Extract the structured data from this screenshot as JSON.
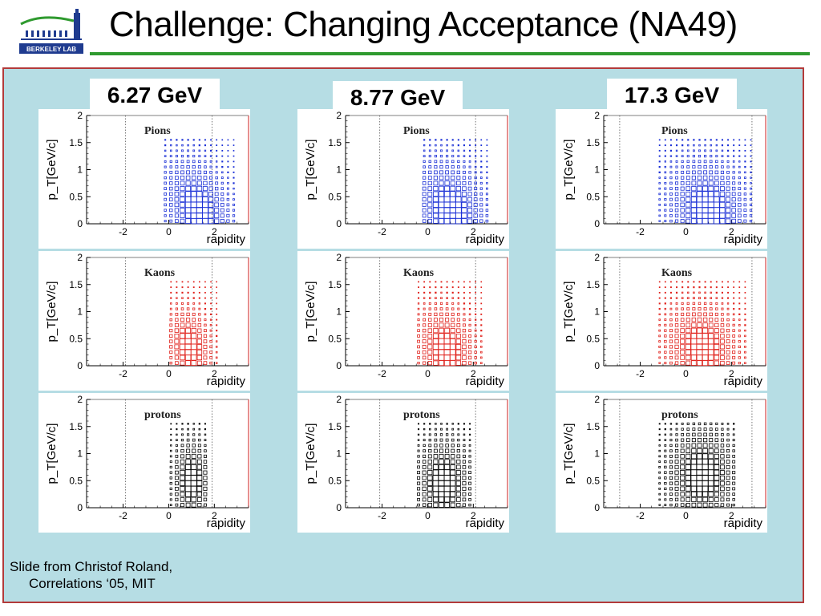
{
  "slide": {
    "title": "Challenge: Changing Acceptance (NA49)",
    "logo_text": "BERKELEY LAB",
    "credit_line1": "Slide from Christof Roland,",
    "credit_line2": "Correlations ‘05, MIT",
    "colors": {
      "title_rule": "#2f9a2f",
      "content_background": "#b6dde4",
      "content_border": "#b33a3a",
      "pions": "#1a2fd6",
      "kaons": "#e0201a",
      "protons": "#000000"
    }
  },
  "energies": [
    "6.27 GeV",
    "8.77 GeV",
    "17.3 GeV"
  ],
  "chart_data": [
    {
      "type": "heatmap",
      "energy": "6.27 GeV",
      "particle": "Pions",
      "xlabel": "rapidity",
      "ylabel": "p_T[GeV/c]",
      "x_ticks": [
        "-2",
        "0",
        "2"
      ],
      "y_ticks": [
        "0",
        "0.5",
        "1",
        "1.5",
        "2"
      ],
      "xlim": [
        -3.6,
        3.5
      ],
      "ylim": [
        0,
        2
      ],
      "acceptance_lines": [
        -1.9,
        1.9
      ],
      "acceptance": {
        "y_min": -0.2,
        "y_max": 2.9,
        "pt_max": 1.6,
        "center": [
          1.3,
          0.25
        ],
        "spread": [
          0.9,
          0.6
        ],
        "slope": -0.55
      }
    },
    {
      "type": "heatmap",
      "energy": "6.27 GeV",
      "particle": "Kaons",
      "xlabel": "rapidity",
      "ylabel": "p_T[GeV/c]",
      "x_ticks": [
        "-2",
        "0",
        "2"
      ],
      "y_ticks": [
        "0",
        "0.5",
        "1",
        "1.5",
        "2"
      ],
      "xlim": [
        -3.6,
        3.5
      ],
      "ylim": [
        0,
        2
      ],
      "acceptance_lines": [
        -1.9,
        1.9
      ],
      "acceptance": {
        "y_min": -0.1,
        "y_max": 2.3,
        "pt_max": 1.6,
        "center": [
          0.9,
          0.35
        ],
        "spread": [
          0.6,
          0.45
        ],
        "slope": -0.25
      }
    },
    {
      "type": "heatmap",
      "energy": "6.27 GeV",
      "particle": "protons",
      "xlabel": "rapidity",
      "ylabel": "p_T[GeV/c]",
      "x_ticks": [
        "-2",
        "0",
        "2"
      ],
      "y_ticks": [
        "0",
        "0.5",
        "1",
        "1.5",
        "2"
      ],
      "xlim": [
        -3.6,
        3.5
      ],
      "ylim": [
        0,
        2
      ],
      "acceptance_lines": [
        -1.9,
        1.9
      ],
      "acceptance": {
        "y_min": -0.1,
        "y_max": 1.6,
        "pt_max": 1.6,
        "center": [
          1.0,
          0.5
        ],
        "spread": [
          0.55,
          0.5
        ],
        "slope": 0
      }
    },
    {
      "type": "heatmap",
      "energy": "8.77 GeV",
      "particle": "Pions",
      "xlabel": "rapidity",
      "ylabel": "p_T[GeV/c]",
      "x_ticks": [
        "-2",
        "0",
        "2"
      ],
      "y_ticks": [
        "0",
        "0.5",
        "1",
        "1.5",
        "2"
      ],
      "xlim": [
        -3.6,
        3.5
      ],
      "ylim": [
        0,
        2
      ],
      "acceptance_lines": [
        -2.1,
        2.1
      ],
      "acceptance": {
        "y_min": -0.3,
        "y_max": 2.7,
        "pt_max": 1.6,
        "center": [
          1.0,
          0.25
        ],
        "spread": [
          1.0,
          0.6
        ],
        "slope": -0.4
      }
    },
    {
      "type": "heatmap",
      "energy": "8.77 GeV",
      "particle": "Kaons",
      "xlabel": "rapidity",
      "ylabel": "p_T[GeV/c]",
      "x_ticks": [
        "-2",
        "0",
        "2"
      ],
      "y_ticks": [
        "0",
        "0.5",
        "1",
        "1.5",
        "2"
      ],
      "xlim": [
        -3.6,
        3.5
      ],
      "ylim": [
        0,
        2
      ],
      "acceptance_lines": [
        -2.1,
        2.1
      ],
      "acceptance": {
        "y_min": -0.6,
        "y_max": 2.4,
        "pt_max": 1.6,
        "center": [
          0.8,
          0.3
        ],
        "spread": [
          0.8,
          0.5
        ],
        "slope": -0.25
      }
    },
    {
      "type": "heatmap",
      "energy": "8.77 GeV",
      "particle": "protons",
      "xlabel": "rapidity",
      "ylabel": "p_T[GeV/c]",
      "x_ticks": [
        "-2",
        "0",
        "2"
      ],
      "y_ticks": [
        "0",
        "0.5",
        "1",
        "1.5",
        "2"
      ],
      "xlim": [
        -3.6,
        3.5
      ],
      "ylim": [
        0,
        2
      ],
      "acceptance_lines": [
        -2.1,
        2.1
      ],
      "acceptance": {
        "y_min": -0.6,
        "y_max": 2.0,
        "pt_max": 1.6,
        "center": [
          0.7,
          0.45
        ],
        "spread": [
          0.8,
          0.55
        ],
        "slope": 0
      }
    },
    {
      "type": "heatmap",
      "energy": "17.3 GeV",
      "particle": "Pions",
      "xlabel": "rapidity",
      "ylabel": "p_T[GeV/c]",
      "x_ticks": [
        "-2",
        "0",
        "2"
      ],
      "y_ticks": [
        "0",
        "0.5",
        "1",
        "1.5",
        "2"
      ],
      "xlim": [
        -3.6,
        3.5
      ],
      "ylim": [
        0,
        2
      ],
      "acceptance_lines": [
        -2.9,
        2.9
      ],
      "acceptance": {
        "y_min": -1.3,
        "y_max": 3.0,
        "pt_max": 1.6,
        "center": [
          1.0,
          0.25
        ],
        "spread": [
          1.1,
          0.6
        ],
        "slope": -0.3
      }
    },
    {
      "type": "heatmap",
      "energy": "17.3 GeV",
      "particle": "Kaons",
      "xlabel": "rapidity",
      "ylabel": "p_T[GeV/c]",
      "x_ticks": [
        "-2",
        "0",
        "2"
      ],
      "y_ticks": [
        "0",
        "0.5",
        "1",
        "1.5",
        "2"
      ],
      "xlim": [
        -3.6,
        3.5
      ],
      "ylim": [
        0,
        2
      ],
      "acceptance_lines": [
        -2.9,
        2.9
      ],
      "acceptance": {
        "y_min": -1.3,
        "y_max": 2.6,
        "pt_max": 1.6,
        "center": [
          0.7,
          0.35
        ],
        "spread": [
          1.0,
          0.5
        ],
        "slope": -0.2
      }
    },
    {
      "type": "heatmap",
      "energy": "17.3 GeV",
      "particle": "protons",
      "xlabel": "rapidity",
      "ylabel": "p_T[GeV/c]",
      "x_ticks": [
        "-2",
        "0",
        "2"
      ],
      "y_ticks": [
        "0",
        "0.5",
        "1",
        "1.5",
        "2"
      ],
      "xlim": [
        -3.6,
        3.5
      ],
      "ylim": [
        0,
        2
      ],
      "acceptance_lines": [
        -2.9,
        2.9
      ],
      "acceptance": {
        "y_min": -1.3,
        "y_max": 2.2,
        "pt_max": 1.6,
        "center": [
          0.7,
          0.6
        ],
        "spread": [
          1.0,
          0.6
        ],
        "slope": 0
      }
    }
  ]
}
